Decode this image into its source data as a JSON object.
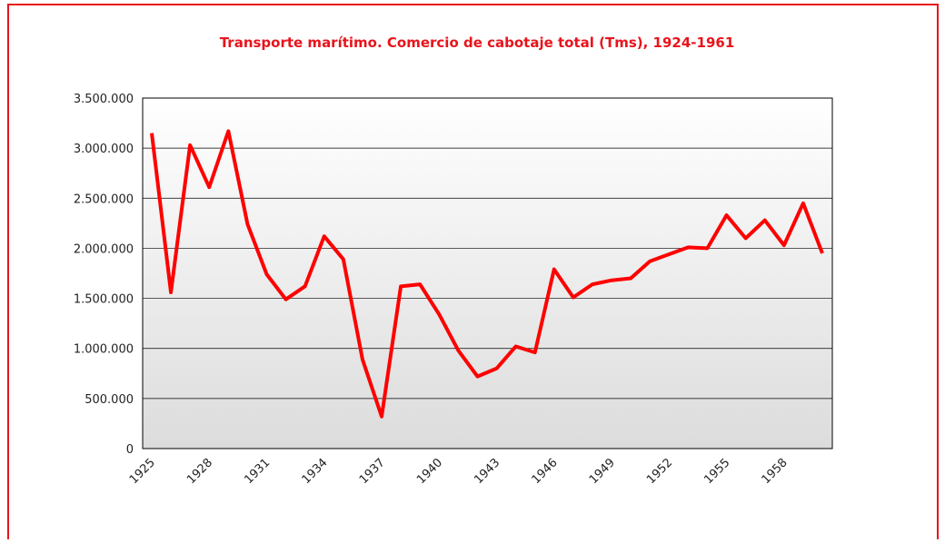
{
  "chart_data": {
    "type": "line",
    "title": "Transporte marítimo. Comercio de cabotaje total (Tms), 1924-1961",
    "categories": [
      "1925",
      null,
      null,
      "1928",
      null,
      null,
      "1931",
      null,
      null,
      "1934",
      null,
      null,
      "1937",
      null,
      null,
      "1940",
      null,
      null,
      "1943",
      null,
      null,
      "1946",
      null,
      null,
      "1949",
      null,
      null,
      "1952",
      null,
      null,
      "1955",
      null,
      null,
      "1958",
      null,
      null
    ],
    "series": [
      {
        "name": "Comercio de cabotaje total",
        "color": "#ff0000",
        "values": [
          3150000,
          1560000,
          3030000,
          2610000,
          3170000,
          2240000,
          1740000,
          1490000,
          1620000,
          2120000,
          1890000,
          890000,
          320000,
          1620000,
          1640000,
          1340000,
          980000,
          720000,
          800000,
          1020000,
          960000,
          1790000,
          1510000,
          1640000,
          1680000,
          1700000,
          1870000,
          1940000,
          2010000,
          2000000,
          2330000,
          2100000,
          2280000,
          2030000,
          2450000,
          1950000
        ]
      }
    ],
    "ylim": [
      0,
      3500000
    ],
    "yticks": [
      0,
      {
        "value": 500000,
        "label": "500.000"
      },
      {
        "value": 1000000,
        "label": "1.000.000"
      },
      {
        "value": 1500000,
        "label": "1.500.000"
      },
      {
        "value": 2000000,
        "label": "2.000.000"
      },
      {
        "value": 2500000,
        "label": "2.500.000"
      },
      {
        "value": 3000000,
        "label": "3.000.000"
      },
      {
        "value": 3500000,
        "label": "3.500.000"
      }
    ],
    "grid": true
  }
}
